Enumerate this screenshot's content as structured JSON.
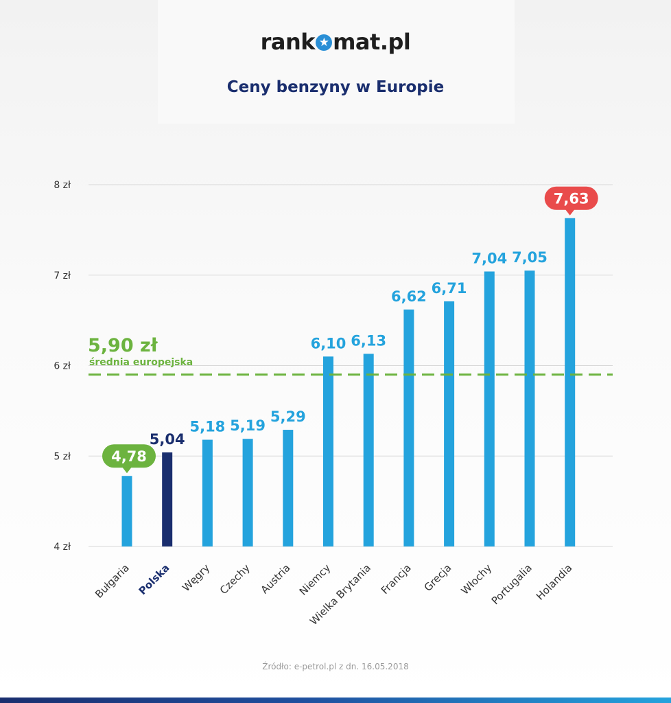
{
  "logo": {
    "before": "rank",
    "after": "mat.pl"
  },
  "chart_data": {
    "type": "bar",
    "title": "Ceny benzyny w Europie",
    "categories": [
      "Bułgaria",
      "Polska",
      "Węgry",
      "Czechy",
      "Austria",
      "Niemcy",
      "Wielka Brytania",
      "Francja",
      "Grecja",
      "Włochy",
      "Portugalia",
      "Holandia"
    ],
    "values": [
      4.78,
      5.04,
      5.18,
      5.19,
      5.29,
      6.1,
      6.13,
      6.62,
      6.71,
      7.04,
      7.05,
      7.63
    ],
    "value_labels": [
      "4,78",
      "5,04",
      "5,18",
      "5,19",
      "5,29",
      "6,10",
      "6,13",
      "6,62",
      "6,71",
      "7,04",
      "7,05",
      "7,63"
    ],
    "ylim": [
      4,
      8
    ],
    "yticks": [
      4,
      5,
      6,
      7,
      8
    ],
    "ytick_labels": [
      "4 zł",
      "5 zł",
      "6 zł",
      "7 zł",
      "8 zł"
    ],
    "grid": true,
    "highlight": {
      "Bułgaria": "lowest",
      "Polska": "poland",
      "Holandia": "highest"
    },
    "reference_line": {
      "value": 5.9,
      "label": "5,90 zł",
      "sublabel": "średnia europejska"
    },
    "colors": {
      "bar": "#24a3dd",
      "poland": "#1a2e6e",
      "lowest": "#6cb33f",
      "highest": "#e94b4b",
      "average": "#6cb33f",
      "grid": "#d8d8d8",
      "axis_text": "#333333"
    }
  },
  "source": "Źródło:  e-petrol.pl z dn. 16.05.2018"
}
